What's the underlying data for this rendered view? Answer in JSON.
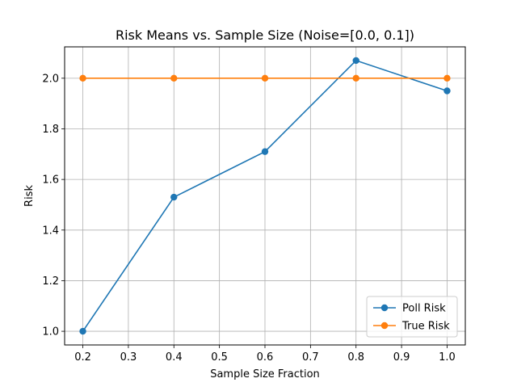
{
  "chart_data": {
    "type": "line",
    "title": "Risk Means vs. Sample Size (Noise=[0.0, 0.1])",
    "xlabel": "Sample Size Fraction",
    "ylabel": "Risk",
    "xlim": [
      0.16,
      1.04
    ],
    "ylim": [
      0.946,
      2.124
    ],
    "x_ticks": [
      0.2,
      0.3,
      0.4,
      0.5,
      0.6,
      0.7,
      0.8,
      0.9,
      1.0
    ],
    "x_tick_labels": [
      "0.2",
      "0.3",
      "0.4",
      "0.5",
      "0.6",
      "0.7",
      "0.8",
      "0.9",
      "1.0"
    ],
    "y_ticks": [
      1.0,
      1.2,
      1.4,
      1.6,
      1.8,
      2.0
    ],
    "y_tick_labels": [
      "1.0",
      "1.2",
      "1.4",
      "1.6",
      "1.8",
      "2.0"
    ],
    "grid": true,
    "legend_position": "lower right",
    "x": [
      0.2,
      0.4,
      0.6,
      0.8,
      1.0
    ],
    "series": [
      {
        "name": "Poll Risk",
        "values": [
          1.0,
          1.53,
          1.71,
          2.07,
          1.95
        ],
        "color": "#1f77b4",
        "marker": "circle"
      },
      {
        "name": "True Risk",
        "values": [
          2.0,
          2.0,
          2.0,
          2.0,
          2.0
        ],
        "color": "#ff7f0e",
        "marker": "circle"
      }
    ]
  }
}
